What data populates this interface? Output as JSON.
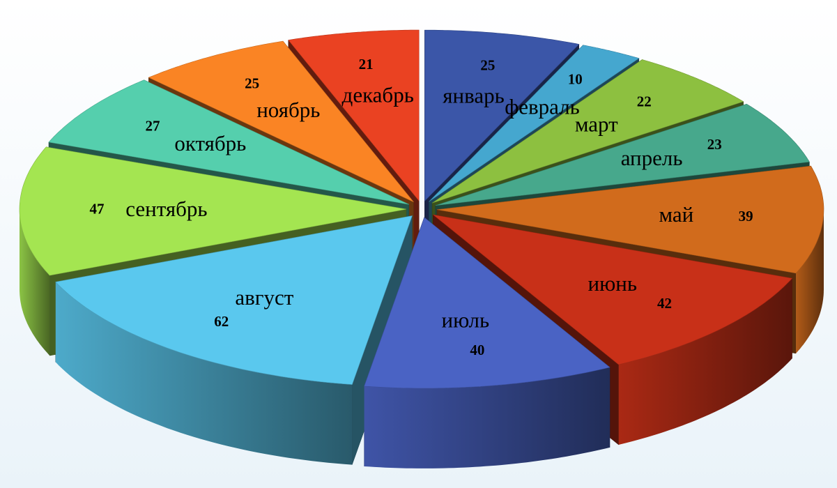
{
  "chart_data": {
    "type": "pie",
    "title": "",
    "style": "3d-exploded",
    "categories": [
      "январь",
      "февраль",
      "март",
      "апрель",
      "май",
      "июнь",
      "июль",
      "август",
      "сентябрь",
      "октябрь",
      "ноябрь",
      "декабрь"
    ],
    "values": [
      25,
      10,
      22,
      23,
      39,
      42,
      40,
      62,
      47,
      27,
      25,
      21
    ],
    "colors": [
      "#3b56a8",
      "#45a7cf",
      "#8dc040",
      "#47a88c",
      "#d16b1c",
      "#c83018",
      "#4a63c4",
      "#5ac8ee",
      "#a4e551",
      "#55cfad",
      "#fa8424",
      "#ea4222"
    ],
    "show_values": true,
    "show_category_labels": true
  }
}
